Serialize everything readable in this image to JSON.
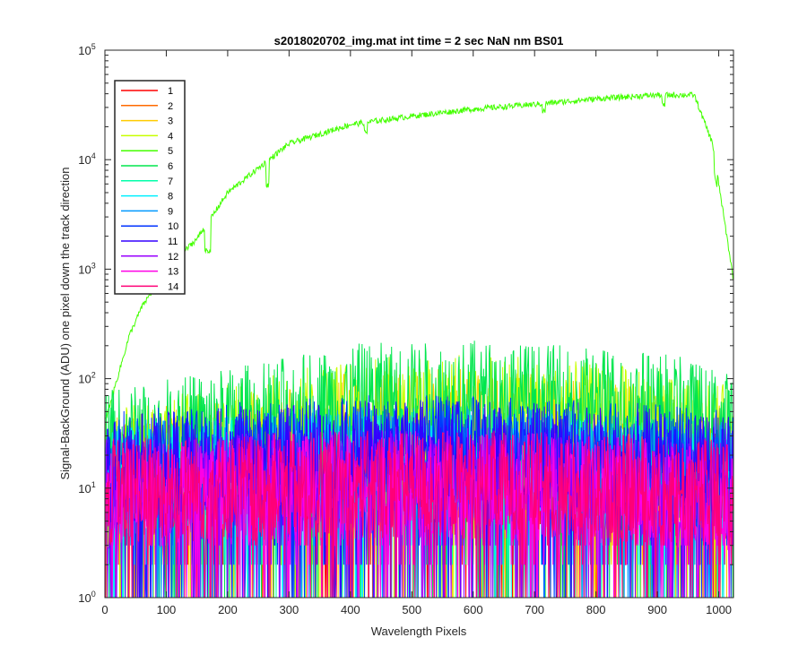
{
  "chart_data": {
    "type": "line",
    "title": "s2018020702_img.mat int time = 2 sec  NaN nm BS01",
    "xlabel": "Wavelength Pixels",
    "ylabel": "Signal-BackGround (ADU) one pixel down the track direction",
    "xlim": [
      0,
      1024
    ],
    "ylim": [
      1,
      100000
    ],
    "yscale": "log",
    "xticks": [
      0,
      100,
      200,
      300,
      400,
      500,
      600,
      700,
      800,
      900,
      1000
    ],
    "xtick_labels": [
      "0",
      "100",
      "200",
      "300",
      "400",
      "500",
      "600",
      "700",
      "800",
      "900",
      "1000"
    ],
    "yticks": [
      1,
      10,
      100,
      1000,
      10000,
      100000
    ],
    "ytick_labels": [
      {
        "base": "10",
        "exp": "0"
      },
      {
        "base": "10",
        "exp": "1"
      },
      {
        "base": "10",
        "exp": "2"
      },
      {
        "base": "10",
        "exp": "3"
      },
      {
        "base": "10",
        "exp": "4"
      },
      {
        "base": "10",
        "exp": "5"
      }
    ],
    "legend_position": "top-left",
    "grid": false,
    "series": [
      {
        "name": "1",
        "color": "#ff0000",
        "profile": {
          "x": [
            0,
            100,
            400,
            600,
            900,
            1024
          ],
          "y": [
            12,
            14,
            16,
            16,
            14,
            12
          ]
        }
      },
      {
        "name": "2",
        "color": "#ff6a00",
        "profile": {
          "x": [
            0,
            100,
            400,
            600,
            900,
            1024
          ],
          "y": [
            13,
            15,
            18,
            18,
            15,
            13
          ]
        }
      },
      {
        "name": "3",
        "color": "#ffcc00",
        "profile": {
          "x": [
            0,
            100,
            400,
            600,
            900,
            1024
          ],
          "y": [
            16,
            20,
            40,
            45,
            32,
            22
          ]
        }
      },
      {
        "name": "4",
        "color": "#c8ff00",
        "profile": {
          "x": [
            0,
            100,
            400,
            600,
            900,
            1024
          ],
          "y": [
            20,
            25,
            55,
            60,
            45,
            30
          ]
        }
      },
      {
        "name": "5",
        "color": "#44ff00",
        "profile": {
          "x": [
            0,
            20,
            40,
            60,
            100,
            150,
            200,
            300,
            400,
            500,
            600,
            700,
            800,
            900,
            960,
            990,
            1024
          ],
          "y": [
            40,
            100,
            250,
            450,
            1000,
            1900,
            5000,
            14000,
            21000,
            25000,
            29000,
            32000,
            36000,
            39000,
            39000,
            14000,
            800
          ]
        }
      },
      {
        "name": "6",
        "color": "#00e64d",
        "profile": {
          "x": [
            0,
            100,
            400,
            600,
            900,
            1024
          ],
          "y": [
            28,
            35,
            75,
            80,
            65,
            40
          ]
        }
      },
      {
        "name": "7",
        "color": "#00ffaa",
        "profile": {
          "x": [
            0,
            100,
            400,
            600,
            900,
            1024
          ],
          "y": [
            14,
            16,
            20,
            20,
            17,
            14
          ]
        }
      },
      {
        "name": "8",
        "color": "#00f0ff",
        "profile": {
          "x": [
            0,
            100,
            400,
            600,
            900,
            1024
          ],
          "y": [
            13,
            15,
            18,
            18,
            15,
            13
          ]
        }
      },
      {
        "name": "9",
        "color": "#0099ff",
        "profile": {
          "x": [
            0,
            100,
            400,
            600,
            900,
            1024
          ],
          "y": [
            14,
            16,
            20,
            21,
            17,
            15
          ]
        }
      },
      {
        "name": "10",
        "color": "#0033ff",
        "profile": {
          "x": [
            0,
            100,
            400,
            600,
            900,
            1024
          ],
          "y": [
            18,
            20,
            25,
            25,
            21,
            18
          ]
        }
      },
      {
        "name": "11",
        "color": "#3300ff",
        "profile": {
          "x": [
            0,
            100,
            400,
            600,
            900,
            1024
          ],
          "y": [
            16,
            18,
            23,
            23,
            19,
            16
          ]
        }
      },
      {
        "name": "12",
        "color": "#9900ff",
        "profile": {
          "x": [
            0,
            100,
            400,
            600,
            900,
            1024
          ],
          "y": [
            10,
            11,
            13,
            13,
            11,
            10
          ]
        }
      },
      {
        "name": "13",
        "color": "#ff00e6",
        "profile": {
          "x": [
            0,
            100,
            400,
            600,
            900,
            1024
          ],
          "y": [
            10,
            10,
            12,
            12,
            10,
            9
          ]
        }
      },
      {
        "name": "14",
        "color": "#ff0077",
        "profile": {
          "x": [
            0,
            100,
            400,
            600,
            900,
            1024
          ],
          "y": [
            11,
            11,
            12,
            12,
            11,
            10
          ]
        }
      }
    ]
  }
}
